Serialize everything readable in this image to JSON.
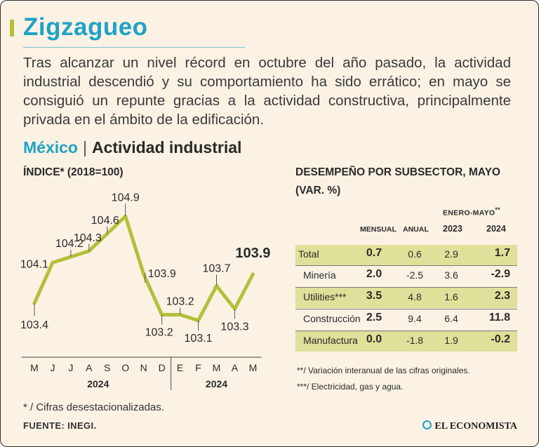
{
  "title": "Zigzagueo",
  "intro": "Tras alcanzar un nivel récord en octubre del año pasado, la actividad industrial descendió y su comportamiento ha sido errático; en mayo se consiguió un repunte gracias a la actividad constructiva, principalmente privada en el ámbito de la edificación.",
  "subhead": {
    "country": "México",
    "topic": "Actividad industrial"
  },
  "colors": {
    "accent": "#1fa2c6",
    "line": "#b5bf3a",
    "shade": "#dfe09a",
    "background": "#fbf2e4"
  },
  "chart_data": {
    "type": "line",
    "title": "ÍNDICE* (2018=100)",
    "categories": [
      "M",
      "J",
      "J",
      "A",
      "S",
      "O",
      "N",
      "D",
      "E",
      "F",
      "M",
      "A",
      "M"
    ],
    "year_labels": [
      "2024",
      "2024"
    ],
    "values": [
      103.4,
      104.1,
      104.2,
      104.3,
      104.6,
      104.9,
      103.9,
      103.2,
      103.2,
      103.1,
      103.7,
      103.3,
      103.9
    ],
    "labels": [
      "103.4",
      "104.1",
      "104.2",
      "104.3",
      "104.6",
      "104.9",
      "103.9",
      "103.2",
      "103.2",
      "103.1",
      "103.7",
      "103.3",
      "103.9"
    ],
    "ylim": [
      102.6,
      105.4
    ],
    "grid": false
  },
  "table": {
    "title1": "DESEMPEÑO POR SUBSECTOR, MAYO",
    "title2": "(VAR. %)",
    "span_header": "ENERO-MAYO",
    "span_sup": "**",
    "columns": [
      "MENSUAL",
      "ANUAL",
      "2023",
      "2024"
    ],
    "rows": [
      {
        "name": "Total",
        "mensual": "0.7",
        "anual": "0.6",
        "y2023": "2.9",
        "y2024": "1.7"
      },
      {
        "name": "Minería",
        "mensual": "2.0",
        "anual": "-2.5",
        "y2023": "3.6",
        "y2024": "-2.9"
      },
      {
        "name": "Utilities***",
        "mensual": "3.5",
        "anual": "4.8",
        "y2023": "1.6",
        "y2024": "2.3"
      },
      {
        "name": "Construcción",
        "mensual": "2.5",
        "anual": "9.4",
        "y2023": "6.4",
        "y2024": "11.8"
      },
      {
        "name": "Manufactura",
        "mensual": "0.0",
        "anual": "-1.8",
        "y2023": "1.9",
        "y2024": "-0.2"
      }
    ],
    "notes": [
      "**/ Variación interanual de las cifras originales.",
      "***/ Electricidad, gas y agua."
    ]
  },
  "footnote": "* / Cifras desestacionalizadas.",
  "source": "FUENTE: INEGI.",
  "brand": "EL ECONOMISTA"
}
